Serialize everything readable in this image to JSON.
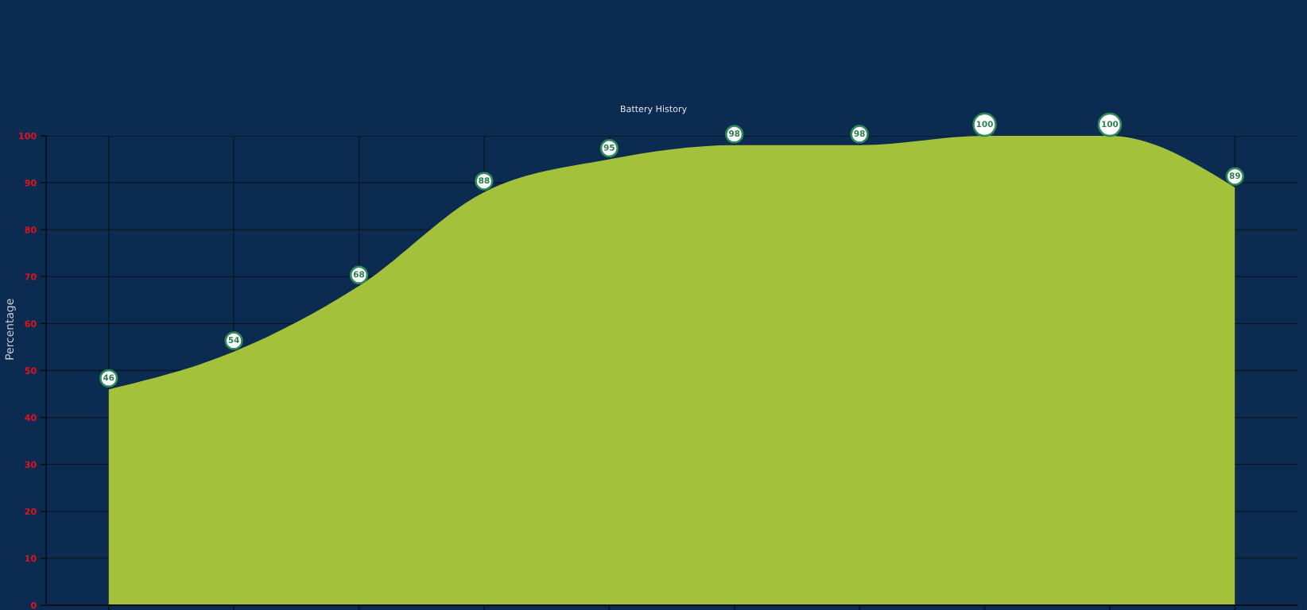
{
  "chart_data": {
    "type": "area",
    "title": "Battery History",
    "ylabel": "Percentage",
    "categories": [
      null,
      null,
      null,
      null,
      null,
      null,
      null,
      null,
      null,
      null
    ],
    "values": [
      46,
      54,
      68,
      88,
      95,
      98,
      98,
      100,
      100,
      89
    ],
    "color": "#a3c13a",
    "ylim": [
      0,
      100
    ],
    "yticks": [
      0,
      10,
      20,
      30,
      40,
      50,
      60,
      70,
      80,
      90,
      100
    ],
    "grid": true,
    "tick_labels": "y",
    "data_labels": true
  }
}
